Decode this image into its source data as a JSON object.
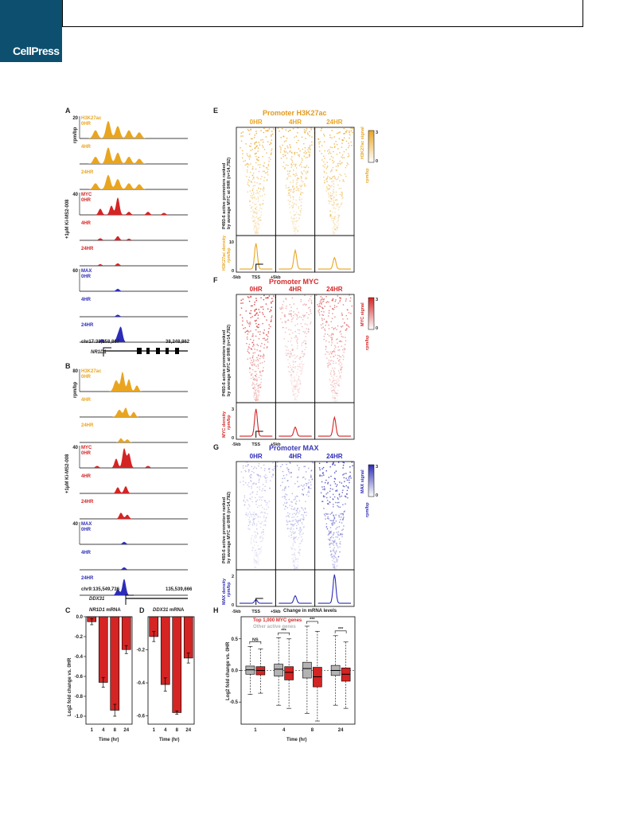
{
  "publisher": {
    "logo_text": "CellPress",
    "brand_color": "#0d4f6e"
  },
  "colors": {
    "h3k27ac": "#e9a520",
    "myc": "#d42424",
    "max": "#2c2cb8",
    "other_genes": "#b3b3b3"
  },
  "panel_labels": {
    "a": "A",
    "b": "B",
    "c": "C",
    "d": "D",
    "e": "E",
    "f": "F",
    "g": "G",
    "h": "H"
  },
  "panel_a": {
    "side_label": "+1μM Ki-MS2-008",
    "ylabel": "rpm/bp",
    "tracks": [
      {
        "mark": "H3K27ac",
        "time": "0HR",
        "scale": "20"
      },
      {
        "time": "4HR"
      },
      {
        "time": "24HR"
      },
      {
        "mark": "MYC",
        "time": "0HR",
        "scale": "40"
      },
      {
        "time": "4HR"
      },
      {
        "time": "24HR"
      },
      {
        "mark": "MAX",
        "time": "0HR",
        "scale": "60"
      },
      {
        "time": "4HR"
      },
      {
        "time": "24HR"
      }
    ],
    "coord_left": "chr17:38,258,867",
    "coord_right": "38,248,862",
    "gene": "NR1D1"
  },
  "panel_b": {
    "side_label": "+1μM Ki-MS2-008",
    "ylabel": "rpm/bp",
    "tracks": [
      {
        "mark": "H3K27ac",
        "time": "0HR",
        "scale": "80"
      },
      {
        "time": "4HR"
      },
      {
        "time": "24HR"
      },
      {
        "mark": "MYC",
        "time": "0HR",
        "scale": "40"
      },
      {
        "time": "4HR"
      },
      {
        "time": "24HR"
      },
      {
        "mark": "MAX",
        "time": "0HR",
        "scale": "40"
      },
      {
        "time": "4HR"
      },
      {
        "time": "24HR"
      }
    ],
    "coord_left": "chr9:135,549,736",
    "coord_right": "135,539,666",
    "gene": "DDX31"
  },
  "panel_c": {
    "title_gene": "NR1D1",
    "title_suffix": " mRNA",
    "ylabel": "Log2 fold change vs. 0HR",
    "xlabel": "Time (hr)",
    "yticks": [
      "0.0",
      "-0.2",
      "-0.4",
      "-0.6",
      "-0.8",
      "-1.0"
    ],
    "chart_data": {
      "type": "bar",
      "categories": [
        "1",
        "4",
        "8",
        "24"
      ],
      "values": [
        -0.05,
        -0.66,
        -0.94,
        -0.33
      ],
      "errors": [
        0.03,
        0.05,
        0.06,
        0.04
      ],
      "ylim": [
        -1.08,
        0.0
      ]
    }
  },
  "panel_d": {
    "title_gene": "DDX31",
    "title_suffix": " mRNA",
    "xlabel": "Time (hr)",
    "yticks": [
      "-0.2",
      "-0.4",
      "-0.6"
    ],
    "chart_data": {
      "type": "bar",
      "categories": [
        "1",
        "4",
        "8",
        "24"
      ],
      "values": [
        -0.12,
        -0.41,
        -0.58,
        -0.25
      ],
      "errors": [
        0.03,
        0.04,
        0.01,
        0.03
      ],
      "ylim": [
        -0.65,
        0.0
      ]
    }
  },
  "panel_e": {
    "title": "Promoter H3K27ac",
    "times": [
      "0HR",
      "4HR",
      "24HR"
    ],
    "ylabel_lines": [
      "P493-6 active promoters ranked",
      "by average MYC at 0HR (n=14,792)"
    ],
    "signal_label": "H3K27ac signal",
    "signal_unit": "rpm/bp",
    "scale_max": "3",
    "scale_min": "0",
    "density_label": "H3K27ac density",
    "density_unit": "rpm/bp",
    "density_ticks": [
      "10",
      "0"
    ],
    "x_ticks": [
      "-5kb",
      "TSS",
      "+5kb"
    ],
    "peak_heights": [
      0.85,
      0.62,
      0.38
    ]
  },
  "panel_f": {
    "title": "Promoter MYC",
    "times": [
      "0HR",
      "4HR",
      "24HR"
    ],
    "ylabel_lines": [
      "P493-6 active promoters ranked",
      "by average MYC at 0HR (n=14,792)"
    ],
    "signal_label": "MYC signal",
    "signal_unit": "rpm/bp",
    "scale_max": "3",
    "scale_min": "0",
    "density_label": "MYC density",
    "density_unit": "rpm/bp",
    "density_ticks": [
      "3",
      "0"
    ],
    "x_ticks": [
      "-5kb",
      "TSS",
      "+5kb"
    ],
    "peak_heights": [
      0.9,
      0.3,
      0.62
    ]
  },
  "panel_g": {
    "title": "Promoter MAX",
    "times": [
      "0HR",
      "4HR",
      "24HR"
    ],
    "ylabel_lines": [
      "P493-6 active promoters ranked",
      "by average MYC at 0HR (n=14,792)"
    ],
    "signal_label": "MAX signal",
    "signal_unit": "rpm/bp",
    "scale_max": "3",
    "scale_min": "0",
    "density_label": "MAX density",
    "density_unit": "rpm/bp",
    "density_ticks": [
      "2",
      "0"
    ],
    "x_ticks": [
      "-5kb",
      "TSS",
      "+5kb"
    ],
    "peak_heights": [
      0.12,
      0.25,
      0.95
    ]
  },
  "panel_h": {
    "title": "Change in mRNA levels",
    "legend": [
      "Top 1,000 MYC genes",
      "Other active genes"
    ],
    "ylabel": "Log2 fold change vs. 0HR",
    "xlabel": "Time (hr)",
    "yticks": [
      "0.5",
      "0.0",
      "-0.5"
    ],
    "significance": [
      "NS",
      "***",
      "***",
      "***"
    ],
    "chart_data": {
      "type": "boxplot",
      "categories": [
        "1",
        "4",
        "8",
        "24"
      ],
      "ylim": [
        -0.85,
        0.85
      ],
      "series": [
        {
          "name": "Other active genes",
          "boxes": [
            {
              "min": -0.38,
              "q1": -0.06,
              "median": 0.01,
              "q3": 0.07,
              "max": 0.38
            },
            {
              "min": -0.55,
              "q1": -0.09,
              "median": 0.02,
              "q3": 0.1,
              "max": 0.52
            },
            {
              "min": -0.68,
              "q1": -0.12,
              "median": 0.03,
              "q3": 0.13,
              "max": 0.7
            },
            {
              "min": -0.55,
              "q1": -0.08,
              "median": 0.0,
              "q3": 0.08,
              "max": 0.55
            }
          ]
        },
        {
          "name": "Top 1,000 MYC genes",
          "boxes": [
            {
              "min": -0.36,
              "q1": -0.07,
              "median": 0.0,
              "q3": 0.06,
              "max": 0.34
            },
            {
              "min": -0.6,
              "q1": -0.15,
              "median": -0.03,
              "q3": 0.06,
              "max": 0.5
            },
            {
              "min": -0.8,
              "q1": -0.26,
              "median": -0.1,
              "q3": 0.05,
              "max": 0.62
            },
            {
              "min": -0.6,
              "q1": -0.17,
              "median": -0.06,
              "q3": 0.04,
              "max": 0.45
            }
          ]
        }
      ]
    }
  }
}
